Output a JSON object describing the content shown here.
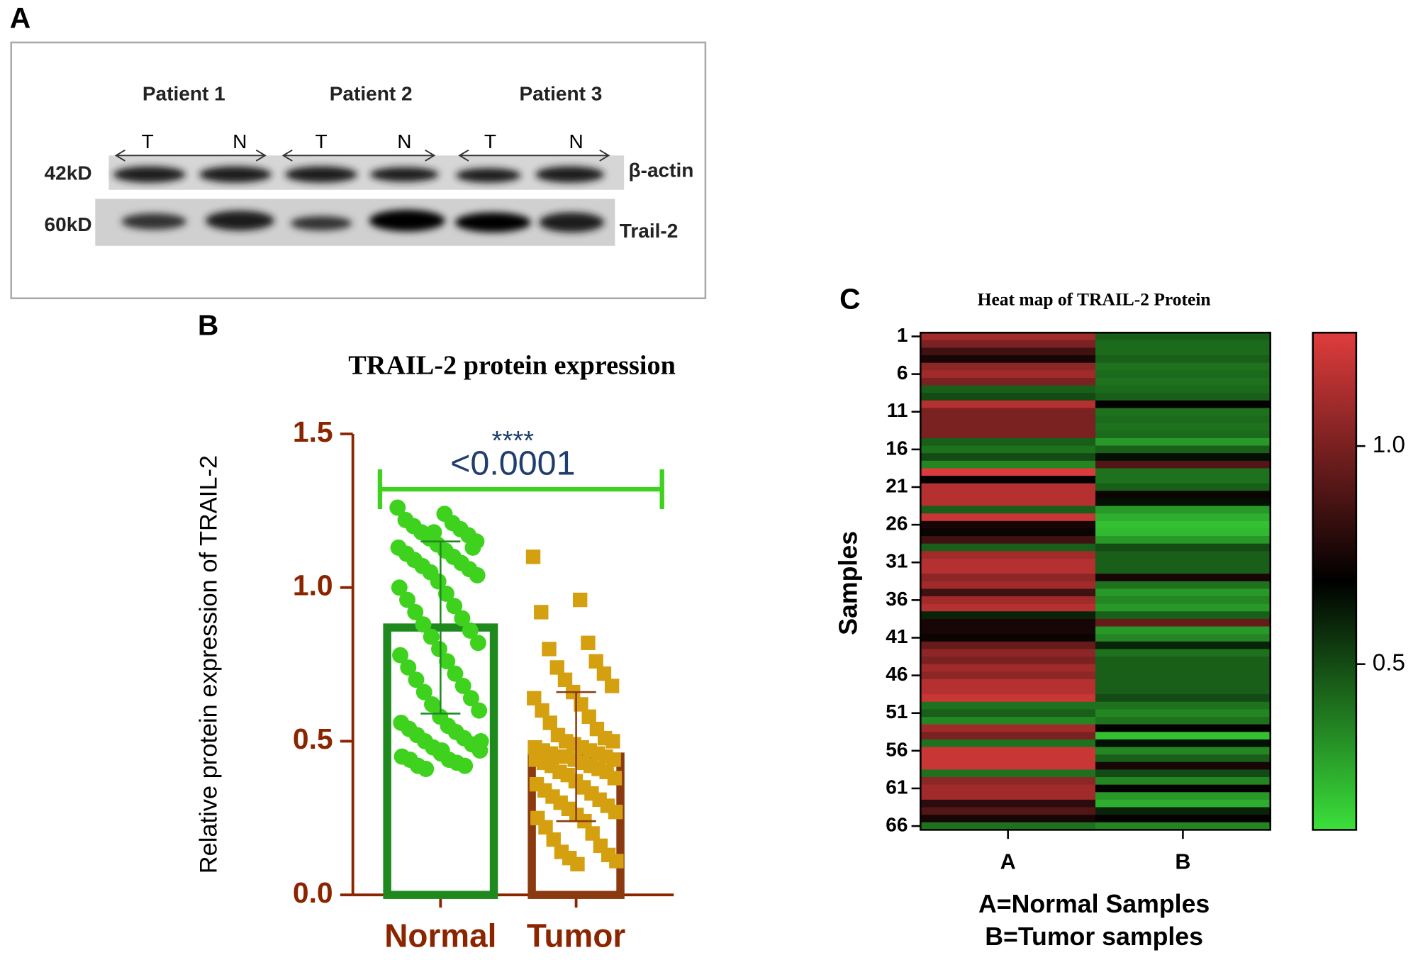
{
  "panel_labels": [
    "A",
    "B",
    "C"
  ],
  "western_blot": {
    "patients": [
      "Patient 1",
      "Patient 2",
      "Patient 3"
    ],
    "lanes": [
      "T",
      "N",
      "T",
      "N",
      "T",
      "N"
    ],
    "markers": [
      "42kD",
      "60kD"
    ],
    "proteins": [
      "β-actin",
      "Trail-2"
    ]
  },
  "chart_data": [
    {
      "type": "bar",
      "title": "TRAIL-2 protein expression",
      "ylabel": "Relative protein expression of TRAIL-2",
      "categories": [
        "Normal",
        "Tumor"
      ],
      "values": [
        0.87,
        0.45
      ],
      "errors": [
        0.28,
        0.21
      ],
      "bar_colors": [
        "#1e8a1e",
        "#8b3a0f"
      ],
      "point_colors": [
        "#3ed21e",
        "#d4a010"
      ],
      "markers": [
        "circle",
        "square"
      ],
      "axis_color": "#8b2500",
      "points": [
        [
          1.26,
          1.24,
          1.22,
          1.21,
          1.2,
          1.19,
          1.18,
          1.17,
          1.16,
          1.15,
          1.14,
          1.13,
          1.12,
          1.11,
          1.1,
          1.09,
          1.08,
          1.07,
          1.06,
          1.05,
          1.04,
          1.02,
          1.0,
          0.98,
          0.96,
          0.94,
          0.92,
          0.9,
          0.88,
          0.86,
          0.84,
          0.82,
          0.8,
          0.78,
          0.76,
          0.74,
          0.72,
          0.7,
          0.68,
          0.66,
          0.64,
          0.62,
          0.6,
          0.58,
          0.56,
          0.55,
          0.54,
          0.53,
          0.52,
          0.51,
          0.5,
          0.49,
          0.48,
          0.47,
          0.46,
          0.45,
          0.44,
          0.44,
          0.43,
          0.42,
          0.42,
          0.41,
          1.13,
          1.18,
          0.5,
          0.47
        ],
        [
          1.1,
          0.96,
          0.92,
          0.82,
          0.8,
          0.76,
          0.74,
          0.72,
          0.7,
          0.68,
          0.66,
          0.64,
          0.62,
          0.6,
          0.58,
          0.56,
          0.54,
          0.52,
          0.51,
          0.5,
          0.5,
          0.49,
          0.48,
          0.48,
          0.47,
          0.47,
          0.46,
          0.46,
          0.45,
          0.45,
          0.45,
          0.44,
          0.44,
          0.44,
          0.43,
          0.43,
          0.42,
          0.42,
          0.41,
          0.4,
          0.4,
          0.39,
          0.38,
          0.37,
          0.36,
          0.35,
          0.34,
          0.33,
          0.32,
          0.31,
          0.3,
          0.29,
          0.28,
          0.27,
          0.26,
          0.25,
          0.24,
          0.22,
          0.2,
          0.18,
          0.16,
          0.14,
          0.13,
          0.12,
          0.11,
          0.1
        ]
      ],
      "significance": {
        "stars": "****",
        "p_label": "<0.0001",
        "y": 1.32,
        "color": "#3ed21e",
        "text_color": "#1f3d6e"
      },
      "ylim": [
        0,
        1.5
      ],
      "yticks": [
        {
          "value": 0,
          "label": "0.0"
        },
        0.5,
        {
          "value": 1,
          "label": "1.0"
        },
        1.5
      ]
    },
    {
      "type": "heatmap",
      "title": "Heat map of TRAIL-2 Protein",
      "ylabel": "Samples",
      "categories": [
        "1",
        null,
        null,
        null,
        null,
        "6",
        null,
        null,
        null,
        null,
        "11",
        null,
        null,
        null,
        null,
        "16",
        null,
        null,
        null,
        null,
        "21",
        null,
        null,
        null,
        null,
        "26",
        null,
        null,
        null,
        null,
        "31",
        null,
        null,
        null,
        null,
        "36",
        null,
        null,
        null,
        null,
        "41",
        null,
        null,
        null,
        null,
        "46",
        null,
        null,
        null,
        null,
        "51",
        null,
        null,
        null,
        null,
        "56",
        null,
        null,
        null,
        null,
        "61",
        null,
        null,
        null,
        null,
        "66"
      ],
      "series": [
        {
          "name": "A",
          "values": [
            1.1,
            1.0,
            0.85,
            0.75,
            1.05,
            1.1,
            1.0,
            0.45,
            0.5,
            1.15,
            1.0,
            1.0,
            1.0,
            1.0,
            0.45,
            0.4,
            0.5,
            0.35,
            1.25,
            0.7,
            1.15,
            1.15,
            1.15,
            0.45,
            1.2,
            0.75,
            0.72,
            0.85,
            0.45,
            1.1,
            1.15,
            1.15,
            1.05,
            1.1,
            0.85,
            1.1,
            1.15,
            0.6,
            0.75,
            0.75,
            0.72,
            0.95,
            1.05,
            1.0,
            1.1,
            1.05,
            1.15,
            1.15,
            1.2,
            0.4,
            0.45,
            0.35,
            1.1,
            1.0,
            0.4,
            1.2,
            1.2,
            1.2,
            0.4,
            1.05,
            1.1,
            1.1,
            0.8,
            0.9,
            0.75,
            0.4
          ]
        },
        {
          "name": "B",
          "values": [
            0.45,
            0.42,
            0.42,
            0.45,
            0.4,
            0.42,
            0.4,
            0.42,
            0.45,
            0.7,
            0.4,
            0.42,
            0.4,
            0.42,
            0.3,
            0.45,
            0.65,
            0.9,
            0.4,
            0.4,
            0.45,
            0.72,
            0.65,
            0.3,
            0.25,
            0.2,
            0.22,
            0.3,
            0.5,
            0.45,
            0.45,
            0.45,
            0.75,
            0.4,
            0.3,
            0.35,
            0.3,
            0.45,
            0.95,
            0.3,
            0.35,
            0.6,
            0.4,
            0.45,
            0.45,
            0.45,
            0.45,
            0.45,
            0.5,
            0.4,
            0.35,
            0.4,
            0.7,
            0.2,
            0.65,
            0.35,
            0.45,
            0.75,
            0.5,
            0.35,
            0.7,
            0.3,
            0.25,
            0.6,
            0.7,
            0.35
          ]
        }
      ],
      "zlim": [
        0.12,
        1.26
      ],
      "colors": [
        "#3be03b",
        "#000000",
        "#e03c3c"
      ],
      "colorbar_ticks": [
        0.5,
        {
          "value": 1,
          "label": "1.0"
        }
      ],
      "notes": [
        "A=Normal Samples",
        "B=Tumor samples"
      ]
    }
  ]
}
